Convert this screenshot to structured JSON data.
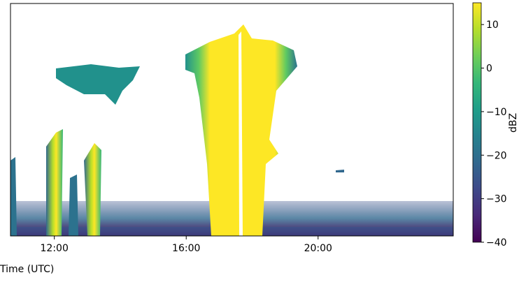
{
  "chart_data": {
    "type": "heatmap",
    "xlabel": "Time (UTC)",
    "xlim": [
      10.67,
      24.1
    ],
    "xticks": [
      {
        "value": 12,
        "label": "12:00"
      },
      {
        "value": 16,
        "label": "16:00"
      },
      {
        "value": 20,
        "label": "20:00"
      }
    ],
    "colormap": "viridis",
    "colorbar_label": "dBZ",
    "clim": [
      -40,
      15
    ],
    "cticks": [
      {
        "value": -40,
        "label": "−40"
      },
      {
        "value": -30,
        "label": "−30"
      },
      {
        "value": -20,
        "label": "−20"
      },
      {
        "value": -10,
        "label": "−10"
      },
      0,
      10
    ]
  }
}
